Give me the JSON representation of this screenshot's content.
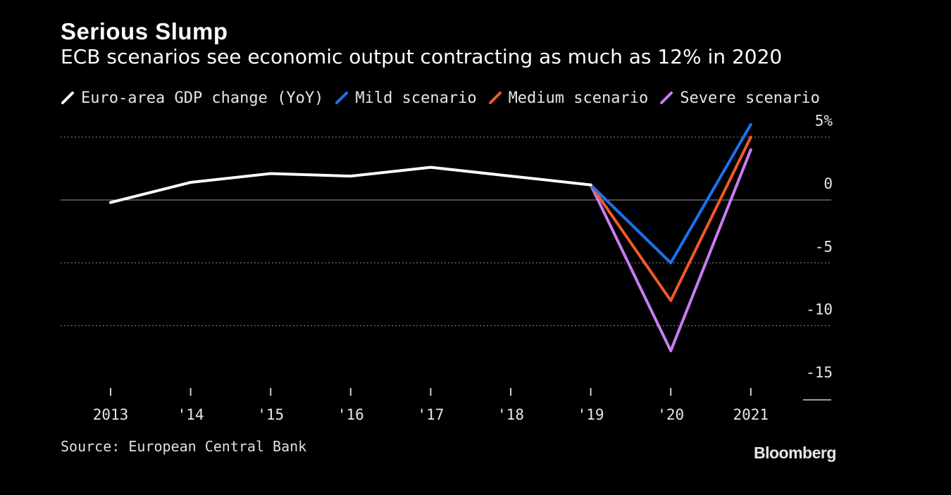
{
  "chart_data": {
    "type": "line",
    "title": "Serious Slump",
    "subtitle": "ECB scenarios see economic output contracting as much as 12% in 2020",
    "x": [
      2013,
      2014,
      2015,
      2016,
      2017,
      2018,
      2019,
      2020,
      2021
    ],
    "x_tick_labels": [
      "2013",
      "'14",
      "'15",
      "'16",
      "'17",
      "'18",
      "'19",
      "'20",
      "2021"
    ],
    "y_tick_labels": [
      "5%",
      "0",
      "-5",
      "-10",
      "-15"
    ],
    "y_ticks": [
      5,
      0,
      -5,
      -10,
      -15
    ],
    "ylim": [
      -15,
      5
    ],
    "grid": true,
    "legend_position": "top-left",
    "series": [
      {
        "name": "Euro-area GDP change (YoY)",
        "color": "#ffffff",
        "points": [
          [
            2013,
            -0.2
          ],
          [
            2014,
            1.4
          ],
          [
            2015,
            2.1
          ],
          [
            2016,
            1.9
          ],
          [
            2017,
            2.6
          ],
          [
            2018,
            1.9
          ],
          [
            2019,
            1.2
          ]
        ]
      },
      {
        "name": "Mild scenario",
        "color": "#1a73f0",
        "points": [
          [
            2019,
            1.2
          ],
          [
            2020,
            -5.0
          ],
          [
            2021,
            6.0
          ]
        ]
      },
      {
        "name": "Medium scenario",
        "color": "#f2592a",
        "points": [
          [
            2019,
            1.2
          ],
          [
            2020,
            -8.0
          ],
          [
            2021,
            5.0
          ]
        ]
      },
      {
        "name": "Severe scenario",
        "color": "#c77df3",
        "points": [
          [
            2019,
            1.2
          ],
          [
            2020,
            -12.0
          ],
          [
            2021,
            4.0
          ]
        ]
      }
    ]
  },
  "footer": {
    "source": "Source: European Central Bank",
    "brand": "Bloomberg"
  }
}
